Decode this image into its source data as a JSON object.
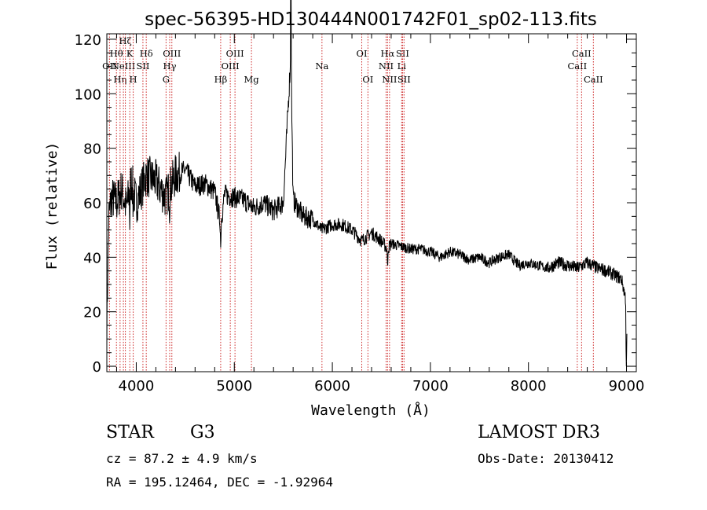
{
  "chart_data": {
    "type": "line",
    "title": "spec-56395-HD130444N001742F01_sp02-113.fits",
    "xlabel": "Wavelength (Å)",
    "ylabel": "Flux (relative)",
    "xlim": [
      3700,
      9100
    ],
    "ylim": [
      -2,
      122
    ],
    "xticks": [
      4000,
      5000,
      6000,
      7000,
      8000,
      9000
    ],
    "yticks": [
      0,
      20,
      40,
      60,
      80,
      100,
      120
    ],
    "series": [
      {
        "name": "flux",
        "anchors_x": [
          3700,
          3720,
          3750,
          3800,
          3850,
          3900,
          3950,
          4000,
          4050,
          4100,
          4200,
          4300,
          4400,
          4500,
          4600,
          4700,
          4800,
          4861,
          4900,
          5000,
          5100,
          5200,
          5300,
          5400,
          5500,
          5577,
          5600,
          5700,
          5800,
          5890,
          6000,
          6100,
          6200,
          6300,
          6400,
          6500,
          6563,
          6600,
          6700,
          6800,
          6900,
          7000,
          7100,
          7200,
          7300,
          7400,
          7500,
          7600,
          7700,
          7800,
          7900,
          8000,
          8100,
          8200,
          8300,
          8400,
          8500,
          8600,
          8700,
          8800,
          8850,
          8900,
          8950,
          8990,
          9000,
          9010
        ],
        "anchors_y": [
          15,
          55,
          62,
          60,
          65,
          58,
          68,
          60,
          65,
          70,
          68,
          62,
          70,
          72,
          66,
          67,
          64,
          52,
          63,
          62,
          61,
          58,
          60,
          57,
          60,
          115,
          61,
          55,
          54,
          50,
          52,
          52,
          50,
          46,
          49,
          46,
          43,
          45,
          44,
          43,
          43,
          42,
          40,
          42,
          41,
          39,
          40,
          38,
          40,
          41,
          37,
          38,
          37,
          36,
          38,
          37,
          36,
          38,
          36,
          35,
          34,
          33,
          32,
          25,
          15,
          5
        ]
      }
    ],
    "lines": [
      {
        "x": 3727,
        "label": "OII",
        "row": 2
      },
      {
        "x": 3798,
        "label": "Hθ",
        "row": 1
      },
      {
        "x": 3835,
        "label": "Hη",
        "row": 3
      },
      {
        "x": 3869,
        "label": "NeIII",
        "row": 2
      },
      {
        "x": 3889,
        "label": "Hζ",
        "row": 0
      },
      {
        "x": 3934,
        "label": "K",
        "row": 1
      },
      {
        "x": 3969,
        "label": "H",
        "row": 3
      },
      {
        "x": 4068,
        "label": "SII",
        "row": 2
      },
      {
        "x": 4102,
        "label": "Hδ",
        "row": 1
      },
      {
        "x": 4304,
        "label": "G",
        "row": 3
      },
      {
        "x": 4341,
        "label": "Hγ",
        "row": 2
      },
      {
        "x": 4363,
        "label": "OIII",
        "row": 1
      },
      {
        "x": 4861,
        "label": "Hβ",
        "row": 3
      },
      {
        "x": 4959,
        "label": "OIII",
        "row": 2
      },
      {
        "x": 5007,
        "label": "OIII",
        "row": 1
      },
      {
        "x": 5175,
        "label": "Mg",
        "row": 3
      },
      {
        "x": 5894,
        "label": "Na",
        "row": 2
      },
      {
        "x": 6300,
        "label": "OI",
        "row": 1
      },
      {
        "x": 6363,
        "label": "OI",
        "row": 3
      },
      {
        "x": 6548,
        "label": "NII",
        "row": 2
      },
      {
        "x": 6563,
        "label": "Hα",
        "row": 1
      },
      {
        "x": 6583,
        "label": "NII",
        "row": 3
      },
      {
        "x": 6707,
        "label": "Li",
        "row": 2
      },
      {
        "x": 6716,
        "label": "SII",
        "row": 1
      },
      {
        "x": 6731,
        "label": "SII",
        "row": 3
      },
      {
        "x": 8498,
        "label": "CaII",
        "row": 2
      },
      {
        "x": 8542,
        "label": "CaII",
        "row": 1
      },
      {
        "x": 8662,
        "label": "CaII",
        "row": 3
      }
    ]
  },
  "info": {
    "class": "STAR",
    "subclass": "G3",
    "survey": "LAMOST DR3",
    "cz": "cz = 87.2 ± 4.9 km/s",
    "obs_date": "Obs-Date: 20130412",
    "coords": "RA = 195.12464, DEC =  -1.92964"
  },
  "colors": {
    "axis": "#000000",
    "flux": "#000000",
    "line_marker": "#cc2222"
  }
}
